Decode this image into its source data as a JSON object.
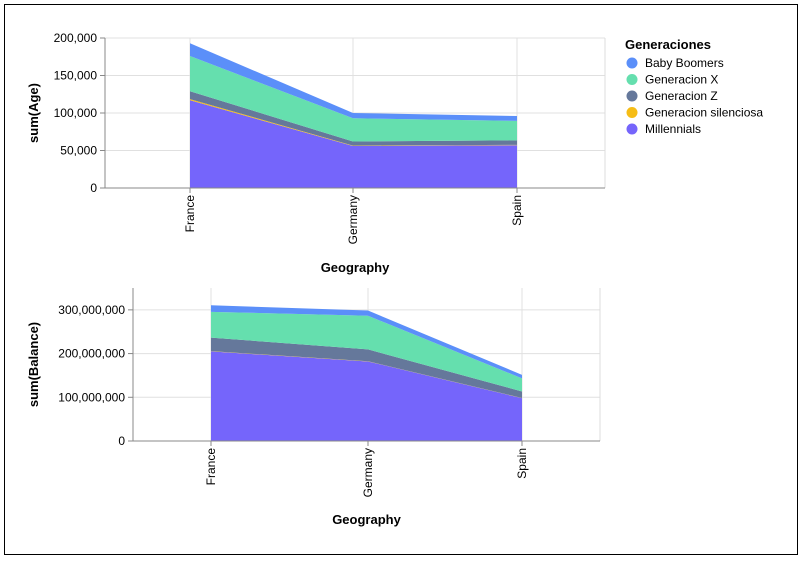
{
  "legend": {
    "title": "Generaciones",
    "items": [
      {
        "label": "Baby Boomers",
        "color": "#5b8ff9"
      },
      {
        "label": "Generacion X",
        "color": "#65dfae"
      },
      {
        "label": "Generacion Z",
        "color": "#65789b"
      },
      {
        "label": "Generacion silenciosa",
        "color": "#f6bd16"
      },
      {
        "label": "Millennials",
        "color": "#7565fb"
      }
    ]
  },
  "chart_data": [
    {
      "type": "area",
      "stacked": true,
      "categories": [
        "France",
        "Germany",
        "Spain"
      ],
      "xlabel": "Geography",
      "ylabel": "sum(Age)",
      "ylim": [
        0,
        200000
      ],
      "yticks": [
        "200,000",
        "150,000",
        "100,000",
        "50,000",
        "0"
      ],
      "ytick_values": [
        200000,
        150000,
        100000,
        50000,
        0
      ],
      "grid": true,
      "series": [
        {
          "name": "Millennials",
          "values": [
            117000,
            56000,
            57000
          ]
        },
        {
          "name": "Generacion silenciosa",
          "values": [
            1500,
            500,
            500
          ]
        },
        {
          "name": "Generacion Z",
          "values": [
            10500,
            5500,
            6000
          ]
        },
        {
          "name": "Generacion X",
          "values": [
            47000,
            31000,
            26000
          ]
        },
        {
          "name": "Baby Boomers",
          "values": [
            17000,
            7000,
            6500
          ]
        }
      ]
    },
    {
      "type": "area",
      "stacked": true,
      "categories": [
        "France",
        "Germany",
        "Spain"
      ],
      "xlabel": "Geography",
      "ylabel": "sum(Balance)",
      "ylim": [
        0,
        350000000
      ],
      "yticks": [
        "300,000,000",
        "200,000,000",
        "100,000,000",
        "0"
      ],
      "ytick_values": [
        300000000,
        200000000,
        100000000,
        0
      ],
      "grid": true,
      "series": [
        {
          "name": "Millennials",
          "values": [
            205000000,
            182000000,
            98000000
          ]
        },
        {
          "name": "Generacion silenciosa",
          "values": [
            500000,
            500000,
            300000
          ]
        },
        {
          "name": "Generacion Z",
          "values": [
            31000000,
            27000000,
            15000000
          ]
        },
        {
          "name": "Generacion X",
          "values": [
            59000000,
            77000000,
            30000000
          ]
        },
        {
          "name": "Baby Boomers",
          "values": [
            15000000,
            12000000,
            8000000
          ]
        }
      ]
    }
  ]
}
